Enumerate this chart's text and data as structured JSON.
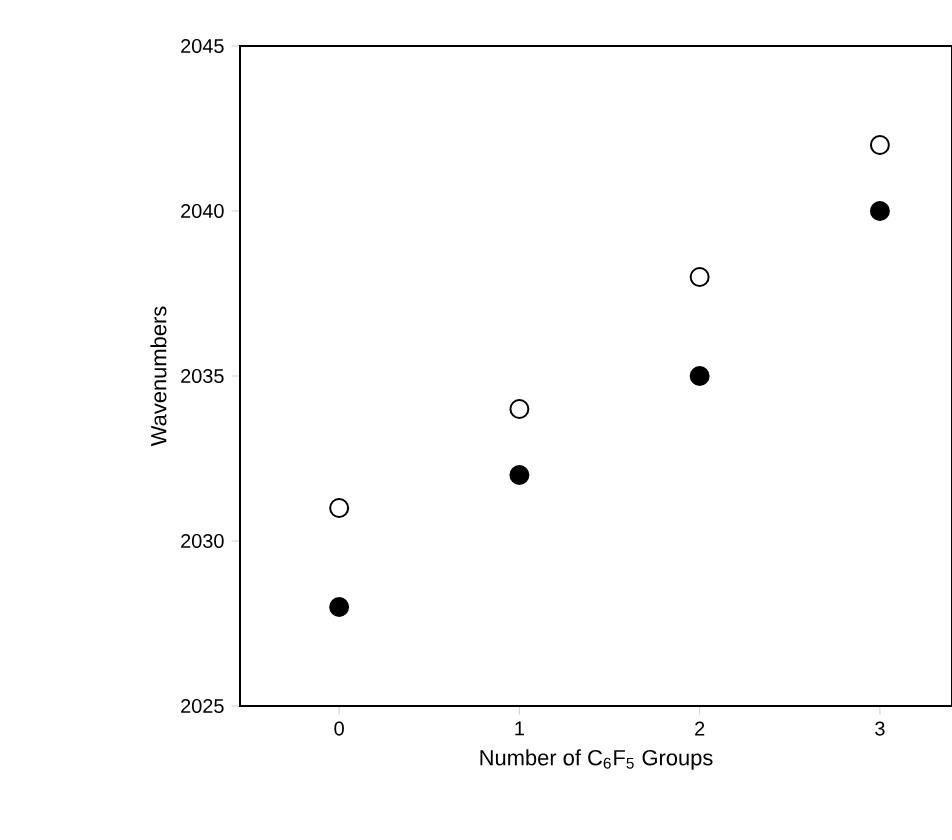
{
  "chart_data": {
    "type": "scatter",
    "xlabel": "Number of C$_{6}$F$_{5}$ Groups",
    "ylabel": "Wavenumbers",
    "x": [
      0,
      1,
      2,
      3
    ],
    "series": [
      {
        "color": "#ffffff",
        "values": [
          2031,
          2034,
          2038,
          2042
        ]
      },
      {
        "color": "#000000",
        "values": [
          2028,
          2032,
          2035,
          2040
        ]
      }
    ],
    "xlim": [
      -0.55,
      3.4
    ],
    "ylim": [
      2025,
      2045
    ],
    "xticks": [
      0,
      1,
      2,
      3
    ],
    "yticks": [
      2025,
      2030,
      2035,
      2040,
      2045
    ],
    "grid": false
  }
}
